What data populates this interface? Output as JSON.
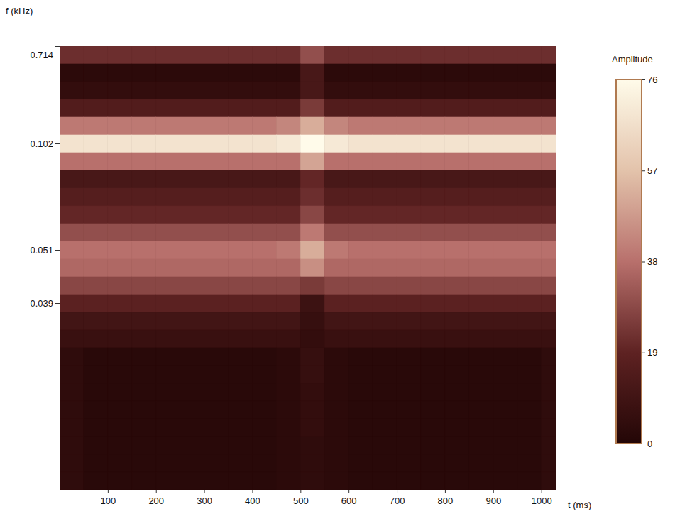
{
  "chart_data": {
    "type": "heatmap",
    "x_label": "t (ms)",
    "y_label": "f (kHz)",
    "xlim": [
      0,
      1030
    ],
    "xticks": [
      100,
      200,
      300,
      400,
      500,
      600,
      700,
      800,
      900,
      1000
    ],
    "x_bins": [
      0,
      50,
      100,
      150,
      200,
      250,
      300,
      350,
      400,
      450,
      500,
      550,
      600,
      650,
      700,
      750,
      800,
      850,
      900,
      950,
      1000,
      1030
    ],
    "categories": [
      "0.714",
      null,
      null,
      null,
      null,
      "0.102",
      null,
      null,
      null,
      null,
      null,
      "0.051",
      null,
      null,
      "0.039",
      null,
      null,
      null,
      null,
      null,
      null,
      null,
      null,
      null,
      null
    ],
    "values": [
      [
        22,
        22,
        22,
        22,
        22,
        22,
        22,
        22,
        22,
        22,
        30,
        22,
        22,
        22,
        22,
        22,
        22,
        22,
        22,
        22,
        22
      ],
      [
        3,
        3,
        3,
        3,
        3,
        3,
        3,
        3,
        3,
        3,
        12,
        3,
        3,
        3,
        3,
        3,
        3,
        3,
        3,
        3,
        3
      ],
      [
        5,
        5,
        5,
        5,
        5,
        5,
        5,
        5,
        5,
        5,
        12,
        5,
        5,
        5,
        5,
        5,
        5,
        5,
        5,
        5,
        5
      ],
      [
        15,
        15,
        15,
        15,
        15,
        15,
        15,
        15,
        15,
        15,
        25,
        15,
        15,
        15,
        15,
        15,
        15,
        15,
        15,
        15,
        15
      ],
      [
        40,
        40,
        40,
        40,
        40,
        40,
        40,
        40,
        40,
        43,
        52,
        43,
        40,
        40,
        40,
        40,
        40,
        40,
        40,
        40,
        40
      ],
      [
        68,
        68,
        68,
        68,
        68,
        68,
        68,
        68,
        68,
        70,
        76,
        70,
        68,
        68,
        68,
        68,
        68,
        68,
        68,
        68,
        68
      ],
      [
        38,
        38,
        38,
        38,
        38,
        38,
        38,
        38,
        38,
        38,
        50,
        38,
        38,
        38,
        38,
        38,
        38,
        38,
        38,
        38,
        38
      ],
      [
        12,
        12,
        12,
        12,
        12,
        12,
        12,
        12,
        12,
        12,
        20,
        12,
        12,
        12,
        12,
        12,
        12,
        12,
        12,
        12,
        12
      ],
      [
        16,
        16,
        16,
        16,
        16,
        16,
        16,
        16,
        16,
        16,
        22,
        16,
        16,
        16,
        16,
        16,
        16,
        16,
        16,
        16,
        16
      ],
      [
        20,
        20,
        20,
        20,
        20,
        20,
        20,
        20,
        20,
        20,
        28,
        20,
        20,
        20,
        20,
        20,
        20,
        20,
        20,
        20,
        20
      ],
      [
        30,
        30,
        30,
        30,
        30,
        30,
        30,
        30,
        30,
        30,
        40,
        30,
        30,
        30,
        30,
        30,
        30,
        30,
        30,
        30,
        30
      ],
      [
        38,
        38,
        38,
        38,
        38,
        38,
        38,
        38,
        38,
        40,
        52,
        40,
        38,
        38,
        38,
        38,
        38,
        38,
        38,
        38,
        38
      ],
      [
        36,
        36,
        36,
        36,
        36,
        36,
        36,
        36,
        36,
        36,
        45,
        36,
        36,
        36,
        36,
        36,
        36,
        36,
        36,
        36,
        36
      ],
      [
        28,
        28,
        28,
        28,
        28,
        28,
        28,
        28,
        28,
        28,
        25,
        28,
        28,
        28,
        28,
        28,
        28,
        28,
        28,
        28,
        28
      ],
      [
        18,
        18,
        18,
        18,
        18,
        18,
        18,
        18,
        18,
        18,
        8,
        18,
        18,
        18,
        18,
        18,
        18,
        18,
        18,
        18,
        18
      ],
      [
        10,
        10,
        10,
        10,
        10,
        10,
        10,
        10,
        10,
        10,
        6,
        10,
        10,
        10,
        10,
        10,
        10,
        10,
        10,
        10,
        10
      ],
      [
        7,
        7,
        7,
        7,
        7,
        7,
        7,
        7,
        7,
        7,
        5,
        7,
        7,
        7,
        7,
        7,
        7,
        7,
        7,
        7,
        7
      ],
      [
        4,
        2,
        2,
        2,
        2,
        2,
        2,
        2,
        2,
        3,
        6,
        3,
        2,
        2,
        2,
        2,
        2,
        2,
        2,
        2,
        4
      ],
      [
        4,
        2,
        2,
        2,
        2,
        2,
        2,
        2,
        2,
        3,
        6,
        3,
        2,
        2,
        2,
        2,
        2,
        2,
        2,
        2,
        4
      ],
      [
        4,
        2,
        2,
        2,
        2,
        2,
        2,
        2,
        2,
        3,
        5,
        3,
        2,
        2,
        2,
        2,
        2,
        2,
        2,
        2,
        4
      ],
      [
        4,
        2,
        2,
        2,
        2,
        2,
        2,
        2,
        2,
        3,
        5,
        3,
        2,
        2,
        2,
        2,
        2,
        2,
        2,
        2,
        4
      ],
      [
        4,
        2,
        2,
        2,
        2,
        2,
        2,
        2,
        2,
        3,
        5,
        3,
        2,
        2,
        2,
        2,
        2,
        2,
        2,
        2,
        4
      ],
      [
        4,
        2,
        2,
        2,
        2,
        2,
        2,
        2,
        2,
        3,
        4,
        3,
        2,
        2,
        2,
        2,
        2,
        2,
        2,
        2,
        4
      ],
      [
        4,
        2,
        2,
        2,
        2,
        2,
        2,
        2,
        2,
        3,
        4,
        3,
        2,
        2,
        2,
        2,
        2,
        2,
        2,
        2,
        4
      ],
      [
        4,
        2,
        2,
        2,
        2,
        2,
        2,
        2,
        2,
        3,
        4,
        3,
        2,
        2,
        2,
        2,
        2,
        2,
        2,
        2,
        4
      ]
    ],
    "colorbar_title": "Amplitude",
    "colorbar_lim": [
      0,
      76
    ],
    "colorbar_ticks": [
      0,
      19,
      38,
      57,
      76
    ]
  }
}
